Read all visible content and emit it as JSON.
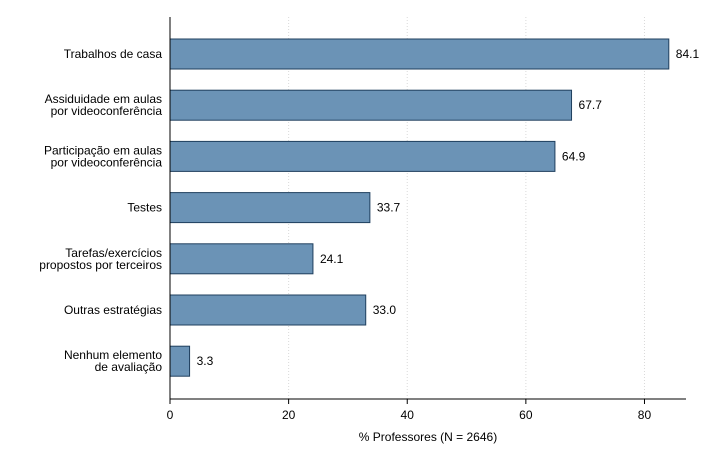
{
  "chart_data": {
    "type": "bar",
    "orientation": "horizontal",
    "categories": [
      [
        "Trabalhos de casa"
      ],
      [
        "Assiduidade em aulas",
        "por videoconferência"
      ],
      [
        "Participação em aulas",
        "por videoconferência"
      ],
      [
        "Testes"
      ],
      [
        "Tarefas/exercícios",
        "propostos por terceiros"
      ],
      [
        "Outras estratégias"
      ],
      [
        "Nenhum elemento",
        "de avaliação"
      ]
    ],
    "values": [
      84.1,
      67.7,
      64.9,
      33.7,
      24.1,
      33.0,
      3.3
    ],
    "value_labels": [
      "84.1",
      "67.7",
      "64.9",
      "33.7",
      "24.1",
      "33.0",
      "3.3"
    ],
    "xlabel": "% Professores (N = 2646)",
    "xlim": [
      0,
      87
    ],
    "xticks": [
      0,
      20,
      40,
      60,
      80
    ],
    "grid": "vertical dotted",
    "bar_color": "#6b93b6",
    "bar_edge_color": "#1f3f5e"
  }
}
